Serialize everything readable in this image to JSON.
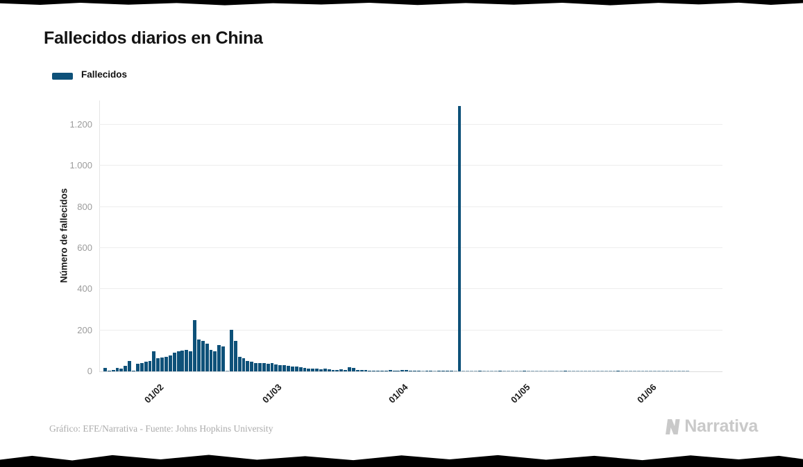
{
  "title": "Fallecidos diarios en China",
  "legend": {
    "label": "Fallecidos",
    "swatch_color": "#0E5179"
  },
  "y_axis": {
    "title": "Número de fallecidos",
    "ticks": [
      {
        "value": 0,
        "label": "0"
      },
      {
        "value": 200,
        "label": "200"
      },
      {
        "value": 400,
        "label": "400"
      },
      {
        "value": 600,
        "label": "600"
      },
      {
        "value": 800,
        "label": "800"
      },
      {
        "value": 1000,
        "label": "1.000"
      },
      {
        "value": 1200,
        "label": "1.200"
      }
    ]
  },
  "x_axis": {
    "ticks": [
      {
        "label": "01/02",
        "day_index": 10
      },
      {
        "label": "01/03",
        "day_index": 39
      },
      {
        "label": "01/04",
        "day_index": 70
      },
      {
        "label": "01/05",
        "day_index": 100
      },
      {
        "label": "01/06",
        "day_index": 131
      }
    ]
  },
  "footer": {
    "credit": "Gráfico: EFE/Narrativa - Fuente: Johns Hopkins University"
  },
  "brand": {
    "name": "Narrativa"
  },
  "colors": {
    "bar": "#0E5179",
    "title_text": "#141414",
    "tick_text": "#9b9b9b",
    "x_tick_text": "#1a1a1a",
    "gridline": "#ededed",
    "footer_text": "#acacac",
    "brand_gray": "#c9c9c9",
    "tear_black": "#000000"
  },
  "chart_data": {
    "type": "bar",
    "title": "Fallecidos diarios en China",
    "ylabel": "Número de fallecidos",
    "xlabel": "",
    "ylim": [
      0,
      1320
    ],
    "grid": true,
    "legend_position": "top-left",
    "series_name": "Fallecidos",
    "x_start": "22/01",
    "x_end": "13/06",
    "x_tick_labels": [
      "01/02",
      "01/03",
      "01/04",
      "01/05",
      "01/06"
    ],
    "peak_value": 1290,
    "values": [
      17,
      1,
      8,
      16,
      14,
      26,
      49,
      2,
      38,
      42,
      46,
      50,
      99,
      64,
      69,
      72,
      78,
      92,
      97,
      100,
      103,
      99,
      251,
      155,
      147,
      136,
      105,
      97,
      129,
      122,
      0,
      202,
      150,
      70,
      64,
      52,
      48,
      41,
      39,
      42,
      36,
      39,
      33,
      31,
      29,
      27,
      25,
      22,
      19,
      17,
      14,
      12,
      13,
      10,
      13,
      11,
      8,
      6,
      9,
      7,
      20,
      16,
      8,
      6,
      6,
      5,
      5,
      4,
      3,
      3,
      6,
      5,
      5,
      8,
      8,
      3,
      2,
      2,
      0,
      2,
      2,
      0,
      2,
      1,
      1,
      2,
      0,
      1290,
      0,
      0,
      0,
      0,
      1,
      0,
      0,
      0,
      0,
      1,
      0,
      0,
      0,
      0,
      0,
      1,
      0,
      0,
      0,
      0,
      0,
      0,
      0,
      0,
      0,
      1,
      0,
      0,
      0,
      0,
      0,
      0,
      0,
      0,
      0,
      0,
      0,
      0,
      1,
      0,
      0,
      0,
      0,
      0,
      0,
      0,
      0,
      0,
      0,
      0,
      0,
      0,
      0,
      0,
      0,
      0
    ]
  }
}
